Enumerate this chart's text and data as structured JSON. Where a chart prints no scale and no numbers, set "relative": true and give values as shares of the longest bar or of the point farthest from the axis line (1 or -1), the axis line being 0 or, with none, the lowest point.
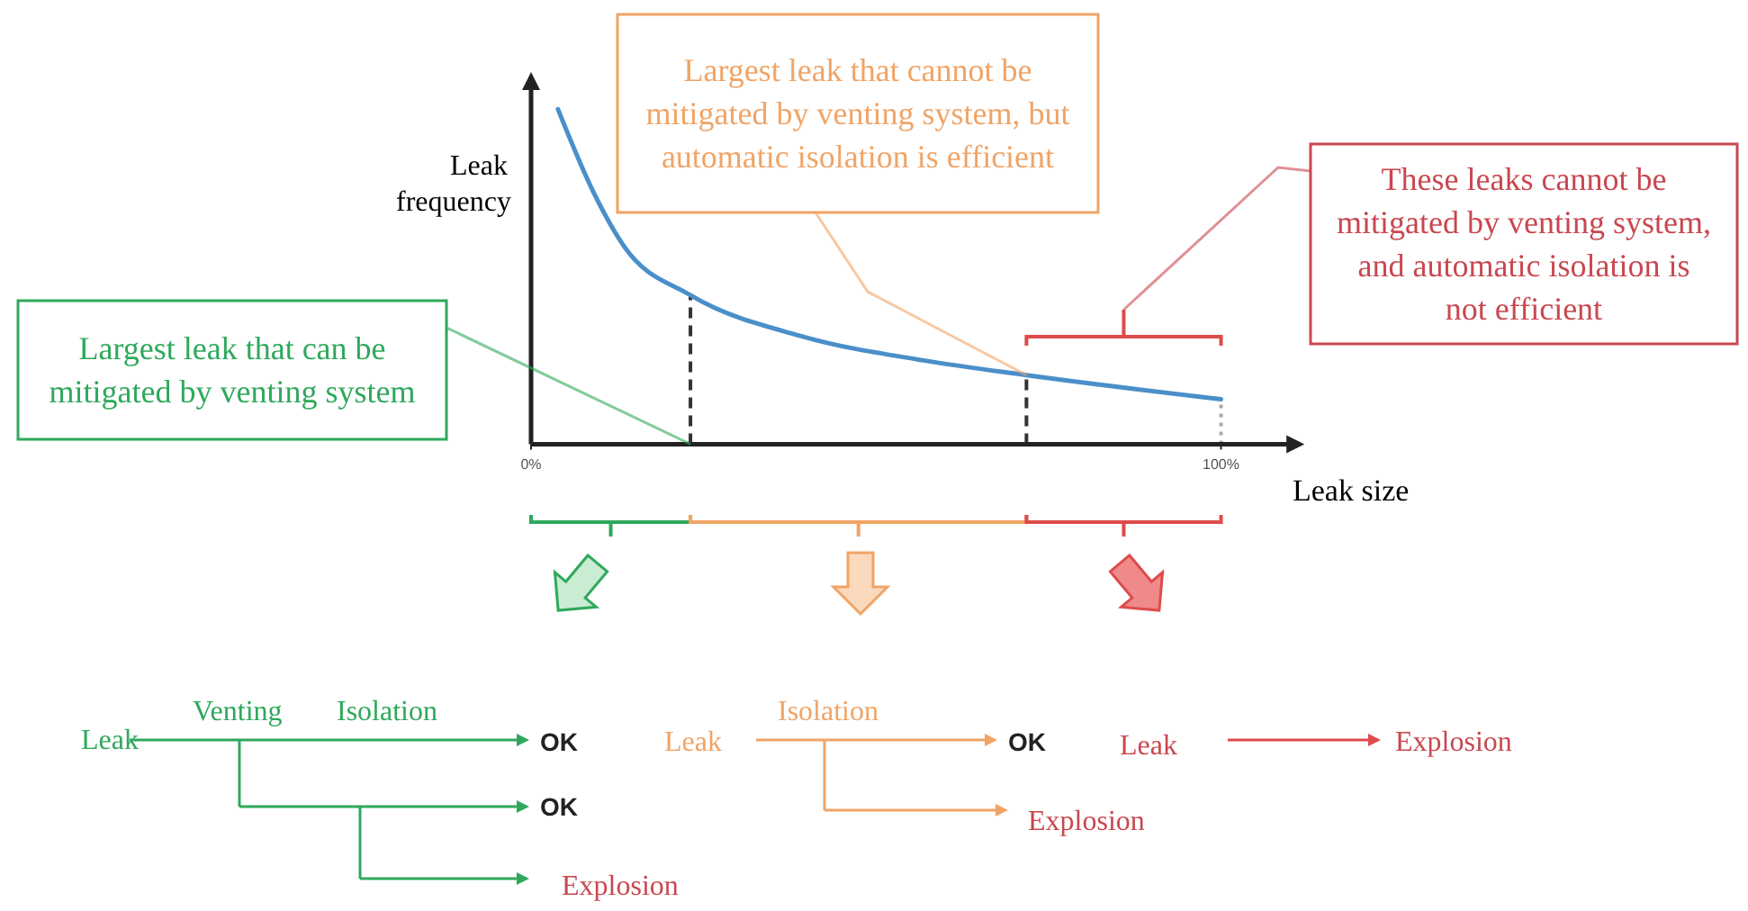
{
  "chart_data": {
    "type": "line",
    "xlabel": "Leak size",
    "ylabel": "Leak frequency",
    "relative": true,
    "x": [
      3.9,
      9.1,
      13.5,
      23.1,
      39.6,
      56.9,
      71.8,
      100
    ],
    "series": [
      {
        "color": "#4a8fc9",
        "values": [
          1,
          0.75,
          0.59,
          0.445,
          0.32,
          0.25,
          0.206,
          0.134
        ]
      }
    ],
    "xlim": [
      0,
      110
    ],
    "xticks": [
      {
        "value": 0,
        "label": "0%"
      },
      {
        "value": 100,
        "label": "100%"
      }
    ],
    "tick_labels": "x",
    "ref_lines": [
      {
        "axis": "x",
        "value": 23.1,
        "color": "#333333",
        "line_style": "dashed"
      },
      {
        "axis": "x",
        "value": 71.8,
        "color": "#333333",
        "line_style": "dashed"
      },
      {
        "axis": "x",
        "value": 100,
        "color": "#aaaaaa",
        "line_style": "dotted"
      }
    ],
    "annotations": [
      {
        "text": "Largest leak that can be mitigated by venting system",
        "x": 23.1,
        "y": 0
      },
      {
        "text": "Largest leak that cannot be mitigated by venting system, but automatic isolation is efficient",
        "x": 71.8,
        "y": 0.206
      },
      "These leaks cannot be mitigated by venting system, and automatic isolation is not efficient",
      "Leak",
      "Venting",
      "Isolation",
      "OK",
      "OK",
      "Explosion",
      "Leak",
      "Isolation",
      "OK",
      "Explosion",
      "Leak",
      "Explosion"
    ],
    "grid": false,
    "marker": "none",
    "line_style": "solid"
  }
}
